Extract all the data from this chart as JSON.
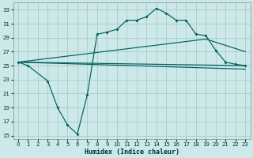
{
  "xlabel": "Humidex (Indice chaleur)",
  "bg_color": "#cce8e8",
  "grid_color": "#aacccc",
  "line_color": "#006060",
  "xlim": [
    -0.5,
    23.5
  ],
  "ylim": [
    14.5,
    34.0
  ],
  "yticks": [
    15,
    17,
    19,
    21,
    23,
    25,
    27,
    29,
    31,
    33
  ],
  "xticks": [
    0,
    1,
    2,
    3,
    4,
    5,
    6,
    7,
    8,
    9,
    10,
    11,
    12,
    13,
    14,
    15,
    16,
    17,
    18,
    19,
    20,
    21,
    22,
    23
  ],
  "line1_x": [
    0,
    1,
    3,
    4,
    5,
    6,
    7,
    8,
    9,
    10,
    11,
    12,
    13,
    14,
    15,
    16,
    17,
    18,
    19,
    20,
    21,
    22,
    23
  ],
  "line1_y": [
    25.5,
    25.0,
    22.8,
    19.0,
    16.5,
    15.2,
    20.8,
    29.5,
    29.8,
    30.2,
    31.5,
    31.5,
    32.0,
    33.2,
    32.5,
    31.5,
    31.5,
    29.5,
    29.3,
    27.2,
    25.5,
    25.2,
    25.0
  ],
  "line2_x": [
    0,
    23
  ],
  "line2_y": [
    25.5,
    25.0
  ],
  "line3_x": [
    0,
    19,
    23
  ],
  "line3_y": [
    25.5,
    28.8,
    27.0
  ],
  "line4_x": [
    0,
    23
  ],
  "line4_y": [
    25.5,
    24.5
  ]
}
